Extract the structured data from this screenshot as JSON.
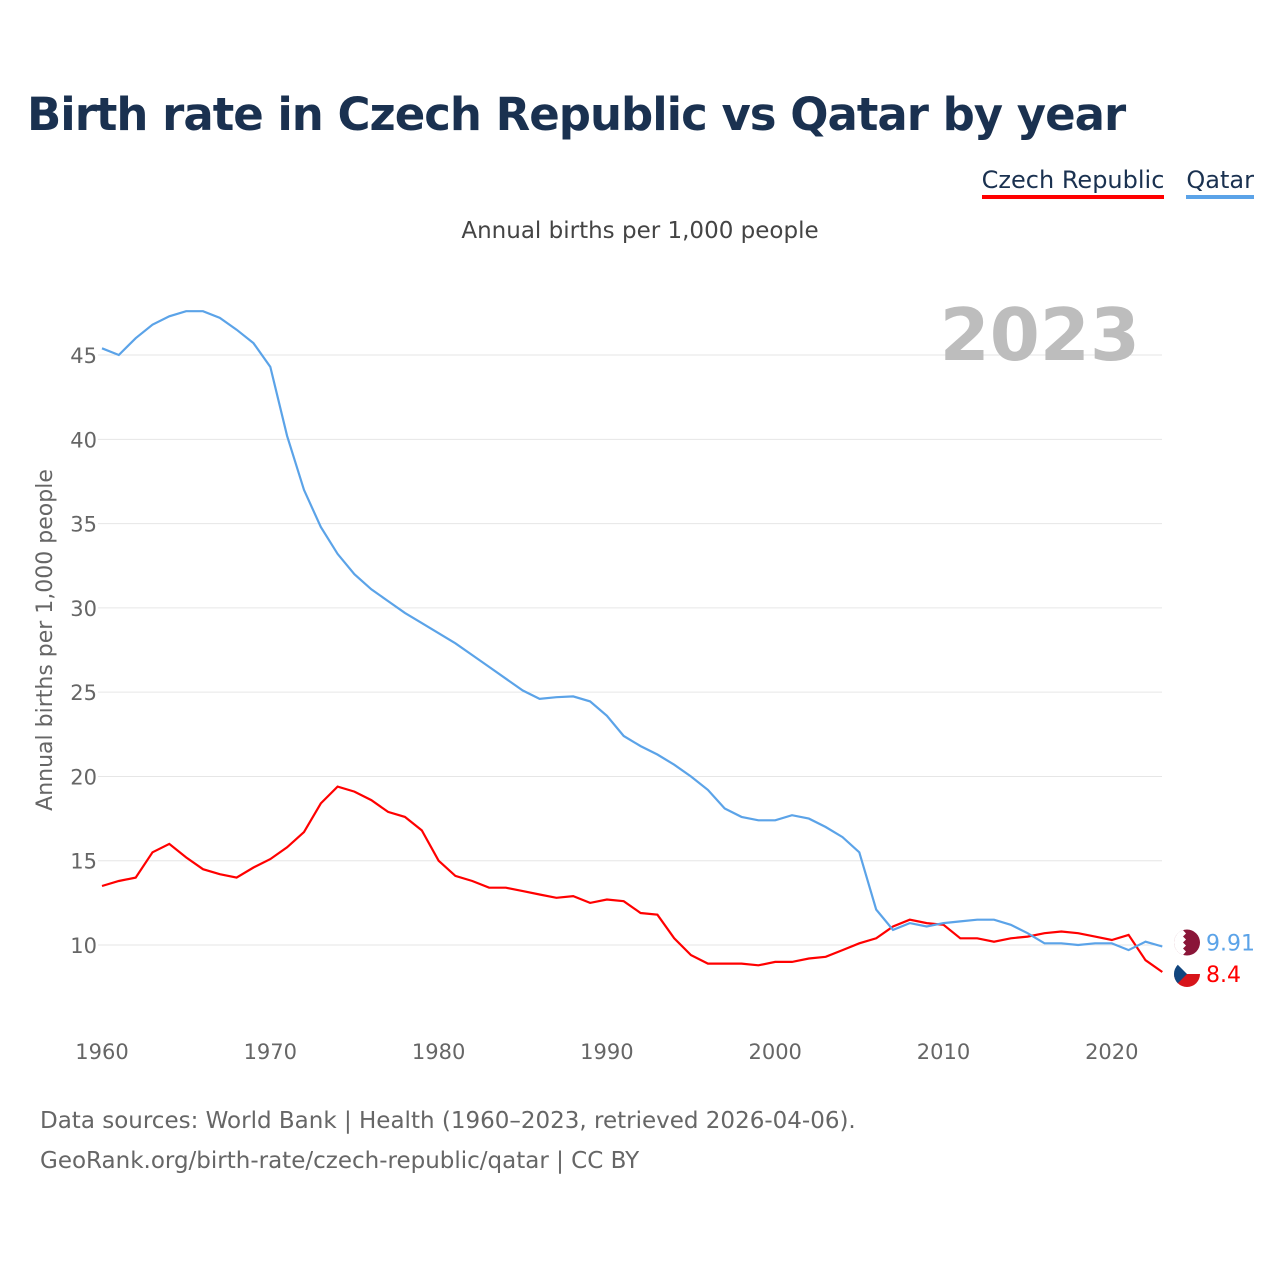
{
  "title": "Birth rate in Czech Republic vs Qatar by year",
  "legend": {
    "czech": "Czech Republic",
    "qatar": "Qatar"
  },
  "subtitle": "Annual births per 1,000 people",
  "year_label": "2023",
  "source_line1": "Data sources: World Bank | Health (1960–2023, retrieved 2026-04-06).",
  "source_line2": "GeoRank.org/birth-rate/czech-republic/qatar | CC BY",
  "chart_data": {
    "type": "line",
    "title": "Birth rate in Czech Republic vs Qatar by year",
    "xlabel": "",
    "ylabel": "Annual births per 1,000 people",
    "xlim": [
      1960,
      2023
    ],
    "ylim": [
      7,
      47
    ],
    "xticks": [
      1960,
      1970,
      1980,
      1990,
      2000,
      2010,
      2020
    ],
    "yticks": [
      10,
      15,
      20,
      25,
      30,
      35,
      40,
      45
    ],
    "grid": true,
    "legend_position": "top-right",
    "x_start": 1960,
    "series": [
      {
        "name": "Czech Republic",
        "color": "#ff0000",
        "end_label": "8.4",
        "values": [
          13.5,
          13.8,
          14.0,
          15.5,
          16.0,
          15.2,
          14.5,
          14.2,
          14.0,
          14.6,
          15.1,
          15.8,
          16.7,
          18.4,
          19.4,
          19.1,
          18.6,
          17.9,
          17.6,
          16.8,
          15.0,
          14.1,
          13.8,
          13.4,
          13.4,
          13.2,
          13.0,
          12.8,
          12.9,
          12.5,
          12.7,
          12.6,
          11.9,
          11.8,
          10.4,
          9.4,
          8.9,
          8.9,
          8.9,
          8.8,
          9.0,
          9.0,
          9.2,
          9.3,
          9.7,
          10.1,
          10.4,
          11.1,
          11.5,
          11.3,
          11.2,
          10.4,
          10.4,
          10.2,
          10.4,
          10.5,
          10.7,
          10.8,
          10.7,
          10.5,
          10.3,
          10.6,
          9.1,
          8.4
        ]
      },
      {
        "name": "Qatar",
        "color": "#5ba3e8",
        "end_label": "9.91",
        "values": [
          45.4,
          45.0,
          46.0,
          46.8,
          47.3,
          47.6,
          47.6,
          47.2,
          46.5,
          45.7,
          44.3,
          40.2,
          37.0,
          34.8,
          33.2,
          32.0,
          31.1,
          30.4,
          29.7,
          29.1,
          28.5,
          27.9,
          27.2,
          26.5,
          25.8,
          25.1,
          24.6,
          24.7,
          24.75,
          24.45,
          23.6,
          22.4,
          21.8,
          21.3,
          20.7,
          20.0,
          19.2,
          18.1,
          17.6,
          17.4,
          17.4,
          17.7,
          17.5,
          17.0,
          16.4,
          15.5,
          12.1,
          10.9,
          11.3,
          11.1,
          11.3,
          11.4,
          11.5,
          11.5,
          11.2,
          10.7,
          10.1,
          10.1,
          10.0,
          10.1,
          10.1,
          9.7,
          10.2,
          9.91
        ]
      }
    ]
  }
}
